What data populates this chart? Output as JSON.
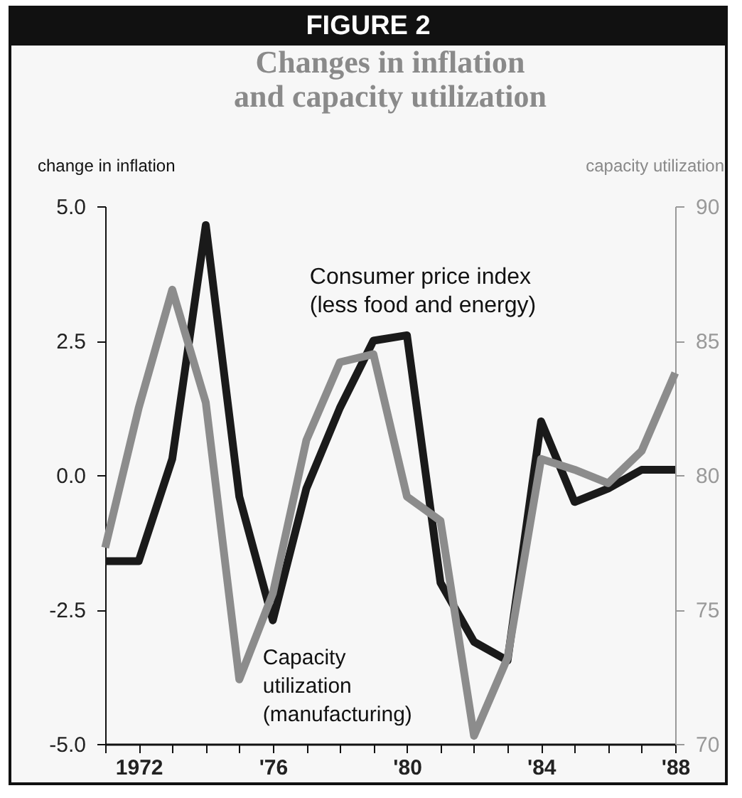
{
  "chart_data": {
    "type": "line",
    "title": "FIGURE 2",
    "subtitle": "Changes in inflation and capacity utilization",
    "ylabel": "change in inflation",
    "y2label": "capacity utilization",
    "x": [
      1971,
      1972,
      1973,
      1974,
      1975,
      1976,
      1977,
      1978,
      1979,
      1980,
      1981,
      1982,
      1983,
      1984,
      1985,
      1986,
      1987,
      1988
    ],
    "series": [
      {
        "name": "Consumer price index (less food and energy)",
        "color": "#1a1a1a",
        "values": [
          -1.6,
          -1.6,
          0.3,
          4.65,
          -0.4,
          -2.7,
          -0.25,
          1.25,
          2.5,
          2.6,
          -2.0,
          -3.1,
          -3.45,
          1.0,
          -0.5,
          -0.25,
          0.1,
          0.1
        ]
      },
      {
        "name": "Capacity utilization (manufacturing)",
        "color": "#8c8c8c",
        "axis": "y2",
        "values": [
          77.3,
          82.5,
          86.9,
          82.7,
          72.4,
          75.6,
          81.3,
          84.2,
          84.5,
          79.2,
          78.3,
          70.3,
          73.2,
          80.6,
          80.2,
          79.7,
          80.9,
          83.8
        ]
      }
    ],
    "xlim": [
      1971,
      1988
    ],
    "xticks": [
      {
        "value": 1971,
        "label": null
      },
      {
        "value": 1972,
        "label": "1972"
      },
      {
        "value": 1973,
        "label": null
      },
      {
        "value": 1974,
        "label": null
      },
      {
        "value": 1975,
        "label": null
      },
      {
        "value": 1976,
        "label": "'76"
      },
      {
        "value": 1977,
        "label": null
      },
      {
        "value": 1978,
        "label": null
      },
      {
        "value": 1979,
        "label": null
      },
      {
        "value": 1980,
        "label": "'80"
      },
      {
        "value": 1981,
        "label": null
      },
      {
        "value": 1982,
        "label": null
      },
      {
        "value": 1983,
        "label": null
      },
      {
        "value": 1984,
        "label": "'84"
      },
      {
        "value": 1985,
        "label": null
      },
      {
        "value": 1986,
        "label": null
      },
      {
        "value": 1987,
        "label": null
      },
      {
        "value": 1988,
        "label": "'88"
      }
    ],
    "ylim": [
      -5,
      5
    ],
    "yticks": [
      {
        "value": -5,
        "label": "-5.0"
      },
      {
        "value": -2.5,
        "label": "-2.5"
      },
      {
        "value": 0,
        "label": "0.0"
      },
      {
        "value": 2.5,
        "label": "2.5"
      },
      {
        "value": 5,
        "label": "5.0"
      }
    ],
    "y2lim": [
      70,
      90
    ],
    "y2ticks": [
      70,
      75,
      80,
      85,
      90
    ],
    "grid": false,
    "marker": "none",
    "line_style": "solid"
  }
}
